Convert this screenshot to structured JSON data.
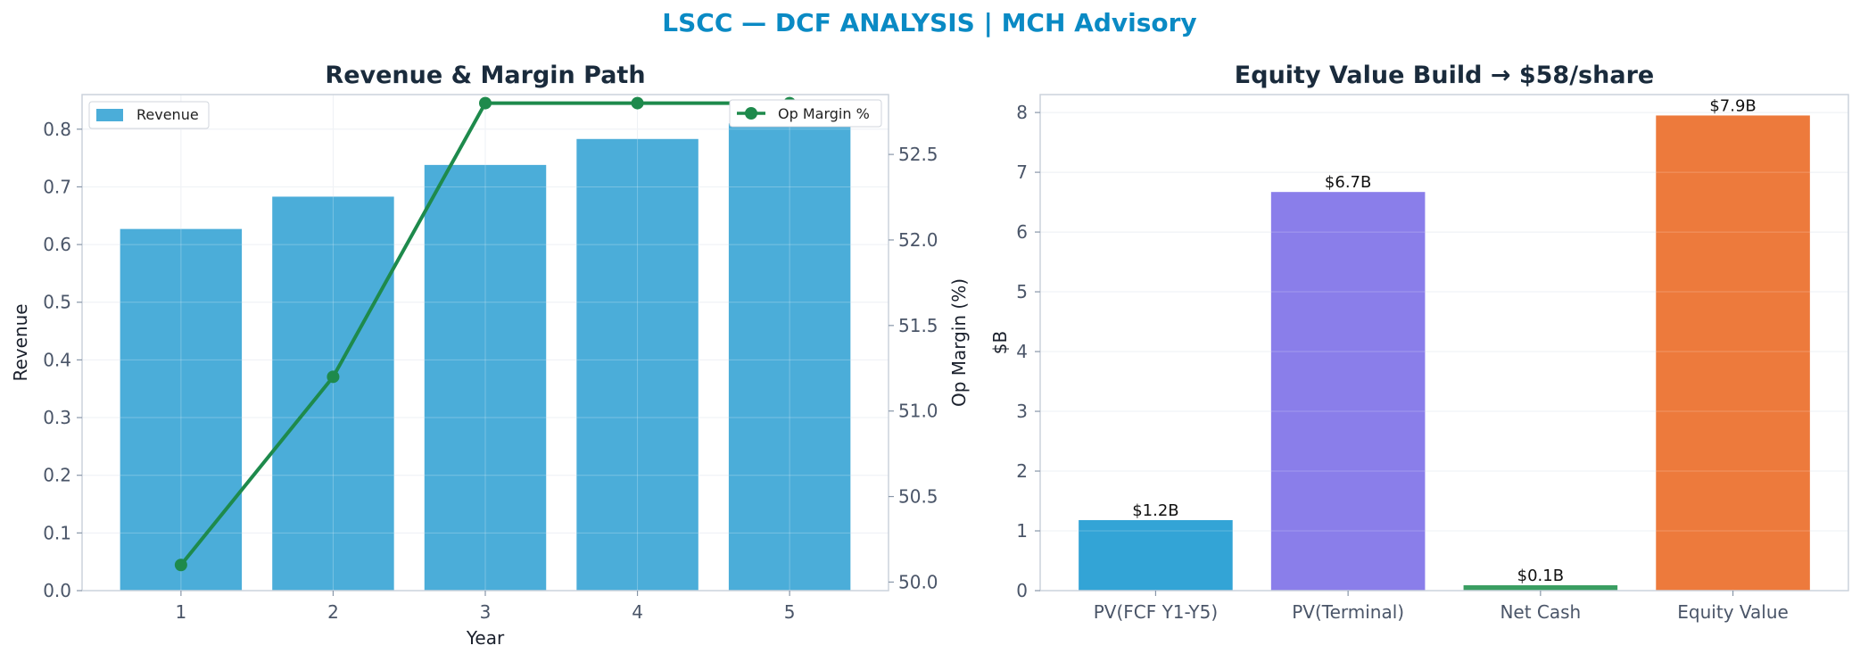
{
  "suptitle": "LSCC — DCF ANALYSIS | MCH Advisory",
  "chart_data": [
    {
      "type": "bar+line",
      "title": "Revenue & Margin Path",
      "xlabel": "Year",
      "ylabel": "Revenue",
      "y2label": "Op Margin (%)",
      "categories": [
        "1",
        "2",
        "3",
        "4",
        "5"
      ],
      "ylim": [
        0,
        0.86
      ],
      "y_ticks": [
        "0.0",
        "0.1",
        "0.2",
        "0.3",
        "0.4",
        "0.5",
        "0.6",
        "0.7",
        "0.8"
      ],
      "y2lim": [
        49.95,
        52.85
      ],
      "y2_ticks": [
        "50.0",
        "50.5",
        "51.0",
        "51.5",
        "52.0",
        "52.5"
      ],
      "grid": true,
      "series": [
        {
          "name": "Revenue",
          "type": "bar",
          "axis": "left",
          "color": "#4badd9",
          "values": [
            0.627,
            0.683,
            0.738,
            0.783,
            0.81
          ]
        },
        {
          "name": "Op Margin %",
          "type": "line",
          "axis": "right",
          "color": "#1e8a4c",
          "values": [
            50.1,
            51.2,
            52.8,
            52.8,
            52.8
          ]
        }
      ],
      "legend": [
        {
          "label": "Revenue",
          "placement": "top-left"
        },
        {
          "label": "Op Margin %",
          "placement": "top-right"
        }
      ]
    },
    {
      "type": "bar",
      "title": "Equity Value Build → $58/share",
      "xlabel": "",
      "ylabel": "$B",
      "categories": [
        "PV(FCF Y1-Y5)",
        "PV(Terminal)",
        "Net Cash",
        "Equity Value"
      ],
      "values": [
        1.18,
        6.67,
        0.09,
        7.95
      ],
      "data_labels": [
        "$1.2B",
        "$6.7B",
        "$0.1B",
        "$7.9B"
      ],
      "colors": [
        "#33a4d6",
        "#8a7eea",
        "#3a9e62",
        "#ed7a3c"
      ],
      "ylim": [
        0,
        8.3
      ],
      "y_ticks": [
        "0",
        "1",
        "2",
        "3",
        "4",
        "5",
        "6",
        "7",
        "8"
      ],
      "grid": true
    }
  ]
}
